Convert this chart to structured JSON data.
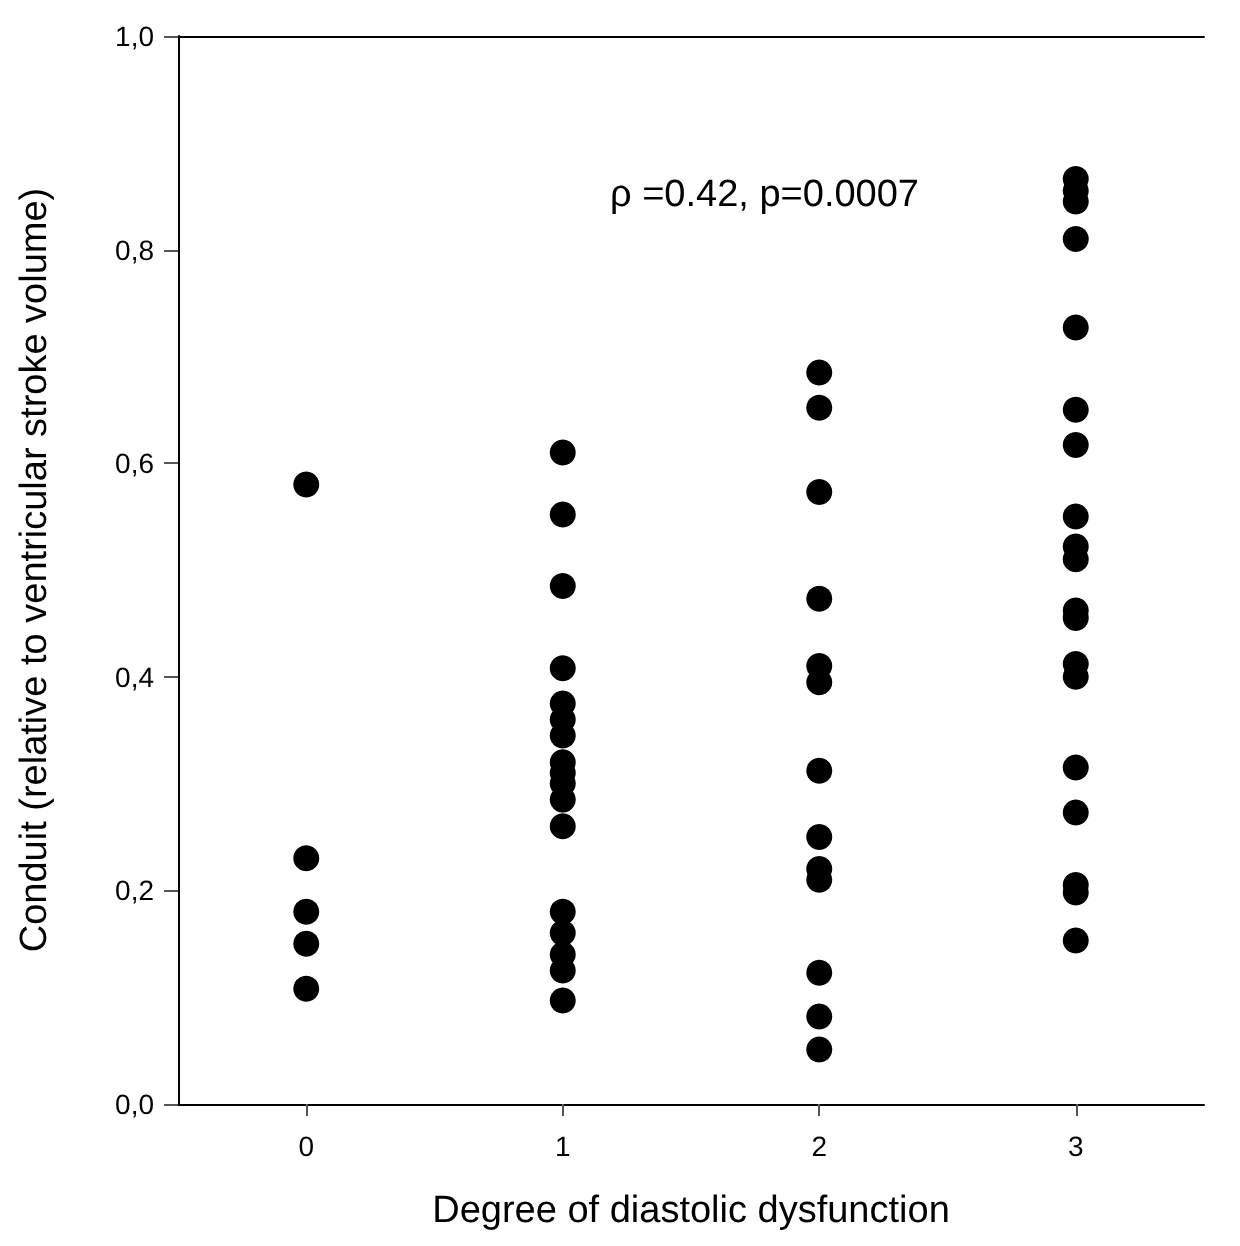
{
  "chart_data": {
    "type": "scatter",
    "xlabel": "Degree of diastolic dysfunction",
    "ylabel": "Conduit (relative to ventricular stroke volume)",
    "annotations": [
      "ρ =0.42, p=0.0007"
    ],
    "categories": [
      "0",
      "1",
      "2",
      "3"
    ],
    "ylim": [
      0,
      1
    ],
    "yticks": [
      {
        "value": 0,
        "label": "0,0"
      },
      {
        "value": 0.2,
        "label": "0,2"
      },
      {
        "value": 0.4,
        "label": "0,4"
      },
      {
        "value": 0.6,
        "label": "0,6"
      },
      {
        "value": 0.8,
        "label": "0,8"
      },
      {
        "value": 1,
        "label": "1,0"
      }
    ],
    "grid": false,
    "marker": "circle",
    "series": [
      {
        "color": "#000000",
        "x": [
          "0",
          "0",
          "0",
          "0",
          "0",
          "1",
          "1",
          "1",
          "1",
          "1",
          "1",
          "1",
          "1",
          "1",
          "1",
          "1",
          "1",
          "1",
          "1",
          "1",
          "1",
          "1",
          "2",
          "2",
          "2",
          "2",
          "2",
          "2",
          "2",
          "2",
          "2",
          "2",
          "2",
          "2",
          "2",
          "3",
          "3",
          "3",
          "3",
          "3",
          "3",
          "3",
          "3",
          "3",
          "3",
          "3",
          "3",
          "3",
          "3",
          "3",
          "3",
          "3",
          "3",
          "3"
        ],
        "values": [
          0.58,
          0.23,
          0.18,
          0.15,
          0.108,
          0.61,
          0.552,
          0.485,
          0.408,
          0.375,
          0.36,
          0.345,
          0.32,
          0.31,
          0.3,
          0.285,
          0.26,
          0.18,
          0.16,
          0.14,
          0.125,
          0.097,
          0.685,
          0.652,
          0.573,
          0.473,
          0.41,
          0.395,
          0.312,
          0.25,
          0.22,
          0.21,
          0.123,
          0.082,
          0.051,
          0.866,
          0.855,
          0.845,
          0.81,
          0.727,
          0.65,
          0.617,
          0.55,
          0.522,
          0.51,
          0.462,
          0.455,
          0.412,
          0.4,
          0.315,
          0.273,
          0.205,
          0.198,
          0.153
        ]
      }
    ]
  }
}
